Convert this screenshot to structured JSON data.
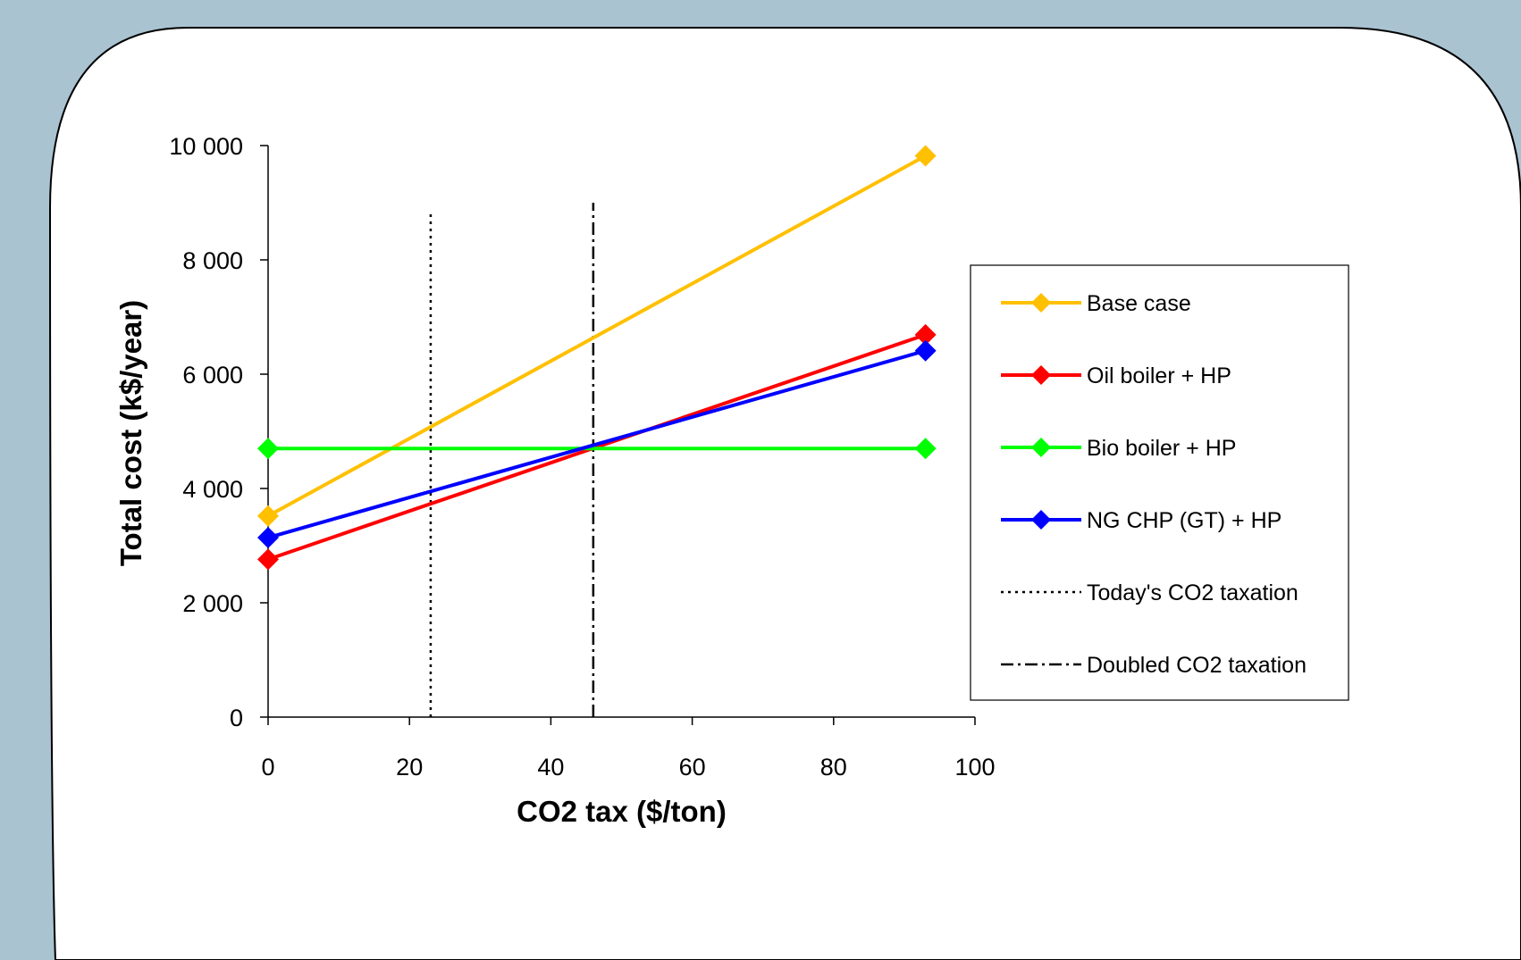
{
  "background_color": "#a9c3d1",
  "card_color": "#ffffff",
  "chart_data": {
    "type": "line",
    "xlabel": "CO2 tax ($/ton)",
    "ylabel": "Total cost (k$/year)",
    "xlim": [
      0,
      100
    ],
    "ylim": [
      0,
      10000
    ],
    "xticks": [
      0,
      20,
      40,
      60,
      80,
      100
    ],
    "xtick_labels": [
      "0",
      "20",
      "40",
      "60",
      "80",
      "100"
    ],
    "yticks": [
      0,
      2000,
      4000,
      6000,
      8000,
      10000
    ],
    "ytick_labels": [
      "0",
      "2 000",
      "4 000",
      "6 000",
      "8 000",
      "10 000"
    ],
    "grid": false,
    "legend_position": "right",
    "series": [
      {
        "name": "Base case",
        "color": "#ffc000",
        "marker": "diamond",
        "x": [
          0,
          93
        ],
        "y": [
          3520,
          9820
        ]
      },
      {
        "name": "Oil boiler + HP",
        "color": "#ff0000",
        "marker": "diamond",
        "x": [
          0,
          93
        ],
        "y": [
          2760,
          6690
        ]
      },
      {
        "name": "Bio boiler + HP",
        "color": "#00ff00",
        "marker": "diamond",
        "x": [
          0,
          93
        ],
        "y": [
          4700,
          4700
        ]
      },
      {
        "name": "NG CHP (GT) + HP",
        "color": "#0000ff",
        "marker": "diamond",
        "x": [
          0,
          93
        ],
        "y": [
          3140,
          6410
        ]
      }
    ],
    "reference_lines": [
      {
        "name": "Today's CO2 taxation",
        "x": 23,
        "y_range": [
          0,
          8850
        ],
        "style": "dotted",
        "color": "#000000"
      },
      {
        "name": "Doubled CO2 taxation",
        "x": 46,
        "y_range": [
          0,
          9000
        ],
        "style": "dash-dot",
        "color": "#000000"
      }
    ]
  }
}
